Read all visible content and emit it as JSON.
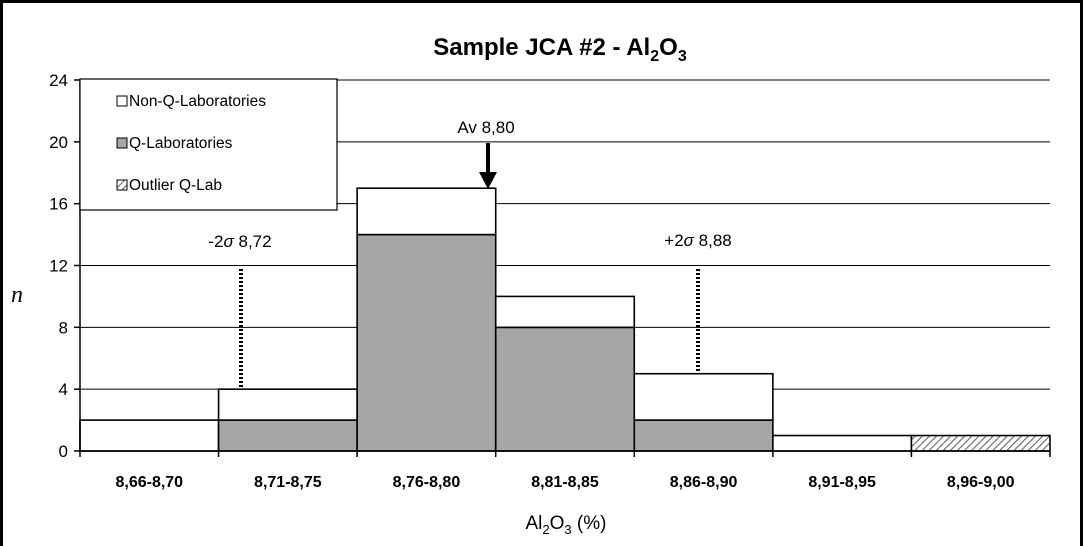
{
  "chart_data": {
    "type": "bar",
    "title": {
      "main": "Sample JCA #2 - Al",
      "sub1": "2",
      "mid": "O",
      "sub2": "3"
    },
    "ylabel": "n",
    "xlabel": {
      "a": "Al",
      "sub1": "2",
      "b": "O",
      "sub2": "3",
      "c": " (%)"
    },
    "categories": [
      "8,66-8,70",
      "8,71-8,75",
      "8,76-8,80",
      "8,81-8,85",
      "8,86-8,90",
      "8,91-8,95",
      "8,96-9,00"
    ],
    "series": [
      {
        "name": "Q-Laboratories",
        "values": [
          0,
          2,
          14,
          8,
          2,
          0,
          0
        ],
        "color": "#a6a6a6"
      },
      {
        "name": "Outlier Q-Lab",
        "values": [
          0,
          0,
          0,
          0,
          0,
          0,
          1
        ],
        "color": "hatched"
      },
      {
        "name": "Non-Q-Laboratories",
        "values": [
          2,
          2,
          3,
          2,
          3,
          1,
          0
        ],
        "color": "#ffffff"
      }
    ],
    "totals": [
      2,
      4,
      17,
      10,
      5,
      1,
      1
    ],
    "yticks": [
      "0",
      "4",
      "8",
      "12",
      "16",
      "20",
      "24"
    ],
    "ylim": [
      0,
      24
    ],
    "grid": true,
    "legend_position": "top-left",
    "legend": [
      "Non-Q-Laboratories",
      "Q-Laboratories",
      "Outlier Q-Lab"
    ],
    "annotations": {
      "average": {
        "label": "Av 8,80",
        "value": 8.8,
        "arrow": "solid"
      },
      "minus2sigma": {
        "label_pre": "-2",
        "sigma": "σ",
        "label_post": " 8,72",
        "value": 8.72,
        "arrow": "dotted"
      },
      "plus2sigma": {
        "label_pre": "+2",
        "sigma": "σ",
        "label_post": " 8,88",
        "value": 8.88,
        "arrow": "dotted"
      }
    }
  }
}
